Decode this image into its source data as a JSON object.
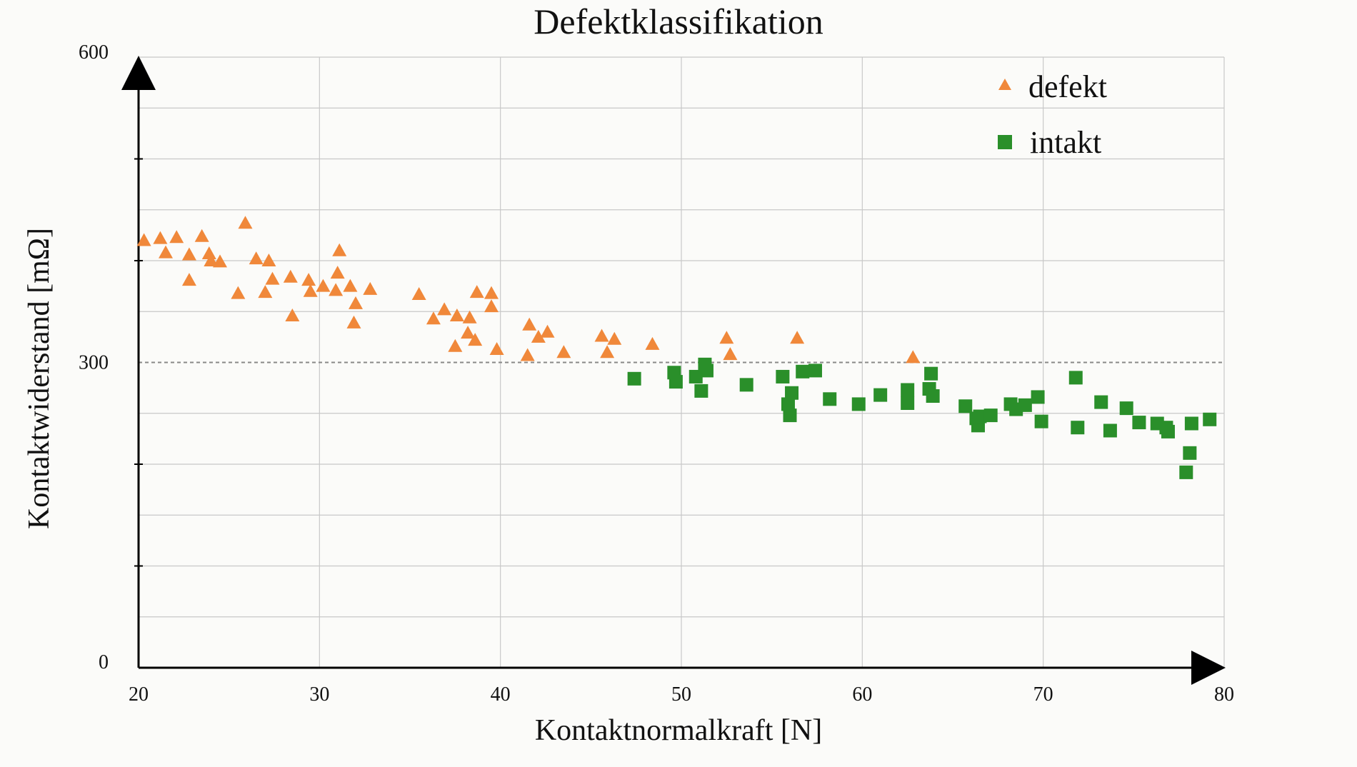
{
  "chart_data": {
    "type": "scatter",
    "title": "Defektklassifikation",
    "xlabel": "Kontaktnormalkraft [N]",
    "ylabel": "Kontaktwiderstand [mΩ]",
    "xlim": [
      20,
      80
    ],
    "ylim": [
      0,
      600
    ],
    "x_ticks": [
      20,
      30,
      40,
      50,
      60,
      70,
      80
    ],
    "x_tick_labels": [
      "20",
      "30",
      "40",
      "50",
      "60",
      "70",
      "80"
    ],
    "y_ticks": [
      0,
      300,
      600
    ],
    "y_tick_labels": [
      "0",
      "300",
      "600"
    ],
    "grid": true,
    "threshold_y": 300,
    "legend_position": "top-right",
    "colors": {
      "defekt": "#f0883a",
      "intakt": "#2a8f2a",
      "grid": "#c8c8c8",
      "threshold": "#888888"
    },
    "series": [
      {
        "name": "defekt",
        "marker": "triangle",
        "points": [
          [
            20.3,
            420
          ],
          [
            21.2,
            422
          ],
          [
            21.5,
            408
          ],
          [
            22.1,
            423
          ],
          [
            22.8,
            406
          ],
          [
            22.8,
            381
          ],
          [
            23.5,
            424
          ],
          [
            23.9,
            407
          ],
          [
            24.0,
            400
          ],
          [
            24.5,
            399
          ],
          [
            25.5,
            368
          ],
          [
            25.9,
            437
          ],
          [
            26.5,
            402
          ],
          [
            27.0,
            369
          ],
          [
            27.2,
            400
          ],
          [
            27.4,
            382
          ],
          [
            28.4,
            384
          ],
          [
            28.5,
            346
          ],
          [
            29.4,
            381
          ],
          [
            29.5,
            370
          ],
          [
            30.2,
            375
          ],
          [
            30.9,
            371
          ],
          [
            31.0,
            388
          ],
          [
            31.1,
            410
          ],
          [
            31.7,
            375
          ],
          [
            31.9,
            339
          ],
          [
            32.0,
            358
          ],
          [
            32.8,
            372
          ],
          [
            35.5,
            367
          ],
          [
            36.3,
            343
          ],
          [
            36.9,
            352
          ],
          [
            37.5,
            316
          ],
          [
            37.6,
            346
          ],
          [
            38.2,
            329
          ],
          [
            38.3,
            344
          ],
          [
            38.6,
            322
          ],
          [
            38.7,
            369
          ],
          [
            39.5,
            355
          ],
          [
            39.5,
            368
          ],
          [
            39.8,
            313
          ],
          [
            41.5,
            307
          ],
          [
            41.6,
            337
          ],
          [
            42.1,
            325
          ],
          [
            42.6,
            330
          ],
          [
            43.5,
            310
          ],
          [
            45.6,
            326
          ],
          [
            45.9,
            310
          ],
          [
            46.3,
            323
          ],
          [
            48.4,
            318
          ],
          [
            52.5,
            324
          ],
          [
            52.7,
            308
          ],
          [
            56.4,
            324
          ],
          [
            62.8,
            305
          ]
        ]
      },
      {
        "name": "intakt",
        "marker": "square",
        "points": [
          [
            47.4,
            284
          ],
          [
            49.6,
            290
          ],
          [
            49.7,
            281
          ],
          [
            50.8,
            286
          ],
          [
            51.1,
            272
          ],
          [
            51.3,
            298
          ],
          [
            51.4,
            292
          ],
          [
            53.6,
            278
          ],
          [
            55.6,
            286
          ],
          [
            55.9,
            259
          ],
          [
            56.0,
            248
          ],
          [
            56.1,
            270
          ],
          [
            56.7,
            291
          ],
          [
            57.4,
            292
          ],
          [
            58.2,
            264
          ],
          [
            59.8,
            259
          ],
          [
            61.0,
            268
          ],
          [
            62.5,
            273
          ],
          [
            62.5,
            260
          ],
          [
            63.7,
            274
          ],
          [
            63.8,
            289
          ],
          [
            63.9,
            267
          ],
          [
            65.7,
            257
          ],
          [
            66.3,
            245
          ],
          [
            66.4,
            238
          ],
          [
            66.5,
            247
          ],
          [
            67.1,
            248
          ],
          [
            68.2,
            259
          ],
          [
            68.5,
            254
          ],
          [
            69.0,
            258
          ],
          [
            69.7,
            266
          ],
          [
            69.9,
            242
          ],
          [
            71.8,
            285
          ],
          [
            71.9,
            236
          ],
          [
            73.2,
            261
          ],
          [
            73.7,
            233
          ],
          [
            74.6,
            255
          ],
          [
            75.3,
            241
          ],
          [
            76.3,
            240
          ],
          [
            76.8,
            236
          ],
          [
            76.9,
            232
          ],
          [
            77.9,
            192
          ],
          [
            78.1,
            211
          ],
          [
            78.2,
            240
          ],
          [
            79.2,
            244
          ]
        ]
      }
    ]
  }
}
